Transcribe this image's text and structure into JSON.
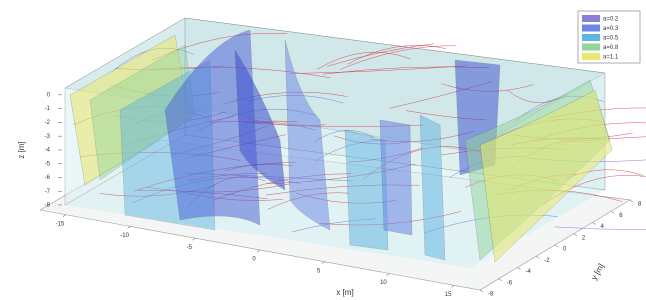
{
  "chart_data": {
    "type": "isosurface3d",
    "xlabel": "x [m]",
    "ylabel": "y [m]",
    "zlabel": "z [m]",
    "xlim": [
      -17,
      17
    ],
    "ylim": [
      -8,
      8
    ],
    "zlim": [
      -8,
      0.5
    ],
    "xticks": [
      -15,
      -10,
      -5,
      0,
      5,
      10,
      15
    ],
    "yticks": [
      -8,
      -6,
      -4,
      -2,
      0,
      2,
      4,
      6,
      8
    ],
    "zticks": [
      0,
      -1,
      -2,
      -3,
      -4,
      -5,
      -6,
      -7,
      -8
    ],
    "legend_position": "upper right",
    "series": [
      {
        "name": "a=0.2",
        "color": "#8b7fd9"
      },
      {
        "name": "a=0.3",
        "color": "#6a86e6"
      },
      {
        "name": "a=0.5",
        "color": "#5fb4e3"
      },
      {
        "name": "a=0.8",
        "color": "#93d49b"
      },
      {
        "name": "a=1.1",
        "color": "#e8e86c"
      }
    ]
  }
}
